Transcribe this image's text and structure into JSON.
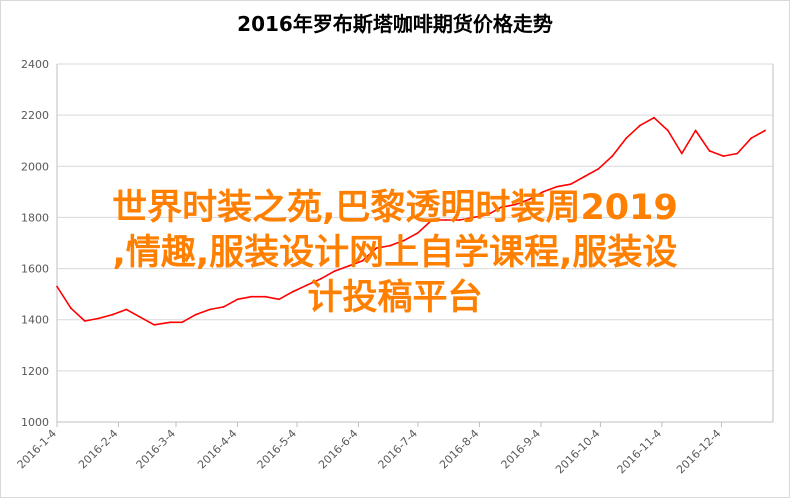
{
  "chart_data": {
    "type": "line",
    "title": "2016年罗布斯塔咖啡期货价格走势",
    "xlabel": "",
    "ylabel": "",
    "ylim": [
      1000,
      2400
    ],
    "yticks": [
      1000,
      1200,
      1400,
      1600,
      1800,
      2000,
      2200,
      2400
    ],
    "grid": true,
    "legend": "none",
    "xticks": [
      "2016-1-4",
      "2016-2-4",
      "2016-3-4",
      "2016-4-4",
      "2016-5-4",
      "2016-6-4",
      "2016-7-4",
      "2016-8-4",
      "2016-9-4",
      "2016-10-4",
      "2016-11-4",
      "2016-12-4"
    ],
    "series": [
      {
        "color": "#ff0000",
        "x": [
          "2016-1-4",
          "2016-1-11",
          "2016-1-18",
          "2016-1-25",
          "2016-2-1",
          "2016-2-8",
          "2016-2-15",
          "2016-2-22",
          "2016-3-1",
          "2016-3-7",
          "2016-3-14",
          "2016-3-21",
          "2016-3-28",
          "2016-4-4",
          "2016-4-11",
          "2016-4-18",
          "2016-4-25",
          "2016-5-2",
          "2016-5-9",
          "2016-5-16",
          "2016-5-23",
          "2016-5-30",
          "2016-6-6",
          "2016-6-13",
          "2016-6-20",
          "2016-6-27",
          "2016-7-4",
          "2016-7-11",
          "2016-7-18",
          "2016-7-25",
          "2016-8-1",
          "2016-8-8",
          "2016-8-15",
          "2016-8-22",
          "2016-8-29",
          "2016-9-5",
          "2016-9-12",
          "2016-9-19",
          "2016-9-26",
          "2016-10-3",
          "2016-10-10",
          "2016-10-17",
          "2016-10-24",
          "2016-10-31",
          "2016-11-7",
          "2016-11-14",
          "2016-11-21",
          "2016-11-28",
          "2016-12-5",
          "2016-12-12",
          "2016-12-19",
          "2016-12-26"
        ],
        "values": [
          1530,
          1445,
          1395,
          1405,
          1420,
          1440,
          1410,
          1380,
          1390,
          1390,
          1420,
          1440,
          1450,
          1480,
          1490,
          1490,
          1480,
          1510,
          1535,
          1560,
          1590,
          1610,
          1630,
          1680,
          1690,
          1710,
          1740,
          1790,
          1790,
          1790,
          1800,
          1810,
          1840,
          1850,
          1870,
          1900,
          1920,
          1930,
          1960,
          1990,
          2040,
          2110,
          2160,
          2190,
          2140,
          2050,
          2140,
          2060,
          2040,
          2050,
          2110,
          2140
        ]
      }
    ]
  },
  "overlay": {
    "line1": "世界时装之苑,巴黎透明时装周2019",
    "line2": ",情趣,服装设计网上自学课程,服装设",
    "line3": "计投稿平台"
  }
}
